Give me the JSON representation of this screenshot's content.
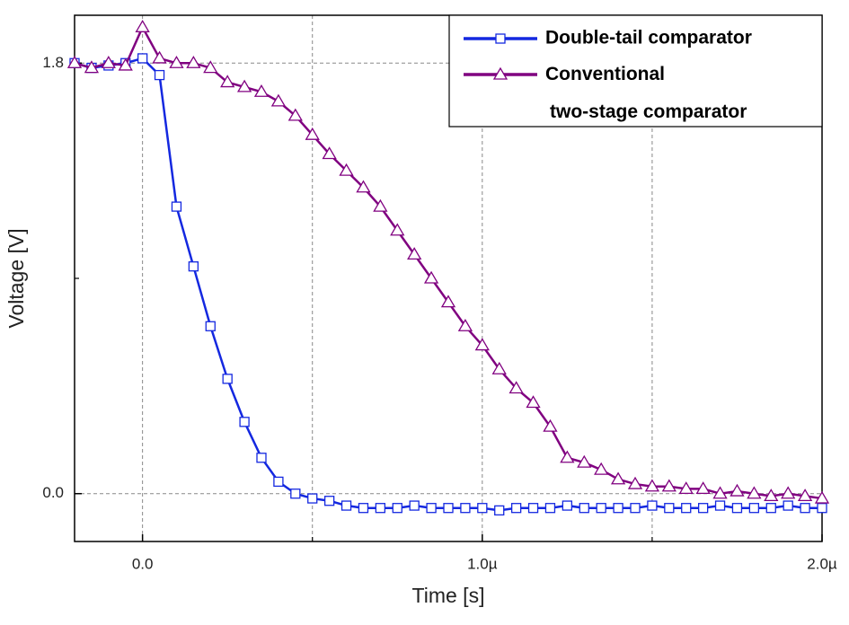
{
  "chart_data": {
    "type": "line",
    "x_label": "Time [s]",
    "y_label": "Voltage [V]",
    "x": [
      -2e-07,
      -1.5e-07,
      -1e-07,
      -5e-08,
      0,
      5e-08,
      1e-07,
      1.5e-07,
      2e-07,
      2.5e-07,
      3e-07,
      3.5e-07,
      4e-07,
      4.5e-07,
      5e-07,
      5.5e-07,
      6e-07,
      6.5e-07,
      7e-07,
      7.5e-07,
      8e-07,
      8.5e-07,
      9e-07,
      9.5e-07,
      1e-06,
      1.05e-06,
      1.1e-06,
      1.15e-06,
      1.2e-06,
      1.25e-06,
      1.3e-06,
      1.35e-06,
      1.4e-06,
      1.45e-06,
      1.5e-06,
      1.55e-06,
      1.6e-06,
      1.65e-06,
      1.7e-06,
      1.75e-06,
      1.8e-06,
      1.85e-06,
      1.9e-06,
      1.95e-06,
      2e-06
    ],
    "series": [
      {
        "name": "Double-tail comparator",
        "color": "#1428e0",
        "marker": "square",
        "values": [
          1.8,
          1.78,
          1.79,
          1.8,
          1.82,
          1.75,
          1.2,
          0.95,
          0.7,
          0.48,
          0.3,
          0.15,
          0.05,
          0.0,
          -0.02,
          -0.03,
          -0.05,
          -0.06,
          -0.06,
          -0.06,
          -0.05,
          -0.06,
          -0.06,
          -0.06,
          -0.06,
          -0.07,
          -0.06,
          -0.06,
          -0.06,
          -0.05,
          -0.06,
          -0.06,
          -0.06,
          -0.06,
          -0.05,
          -0.06,
          -0.06,
          -0.06,
          -0.05,
          -0.06,
          -0.06,
          -0.06,
          -0.05,
          -0.06,
          -0.06
        ]
      },
      {
        "name": "Conventional two-stage comparator",
        "color": "#800080",
        "marker": "triangle",
        "values": [
          1.8,
          1.78,
          1.8,
          1.79,
          1.95,
          1.82,
          1.8,
          1.8,
          1.78,
          1.72,
          1.7,
          1.68,
          1.64,
          1.58,
          1.5,
          1.42,
          1.35,
          1.28,
          1.2,
          1.1,
          1.0,
          0.9,
          0.8,
          0.7,
          0.62,
          0.52,
          0.44,
          0.38,
          0.28,
          0.15,
          0.13,
          0.1,
          0.06,
          0.04,
          0.03,
          0.03,
          0.02,
          0.02,
          0.0,
          0.01,
          0.0,
          -0.01,
          0.0,
          -0.01,
          -0.02
        ]
      }
    ],
    "xlim": [
      -2e-07,
      2e-06
    ],
    "xticks": [
      {
        "value": 0,
        "label": "0.0"
      },
      {
        "value": 1e-06,
        "label": "1.0µ"
      },
      {
        "value": 2e-06,
        "label": "2.0µ"
      }
    ],
    "xticks_minor": [
      5e-07,
      1.5e-06
    ],
    "ylim": [
      -0.2,
      2.0
    ],
    "yticks": [
      {
        "value": 0,
        "label": "0.0"
      },
      1.8
    ],
    "yticks_minor": [
      0.9
    ],
    "grid": true,
    "legend": "upper right"
  }
}
